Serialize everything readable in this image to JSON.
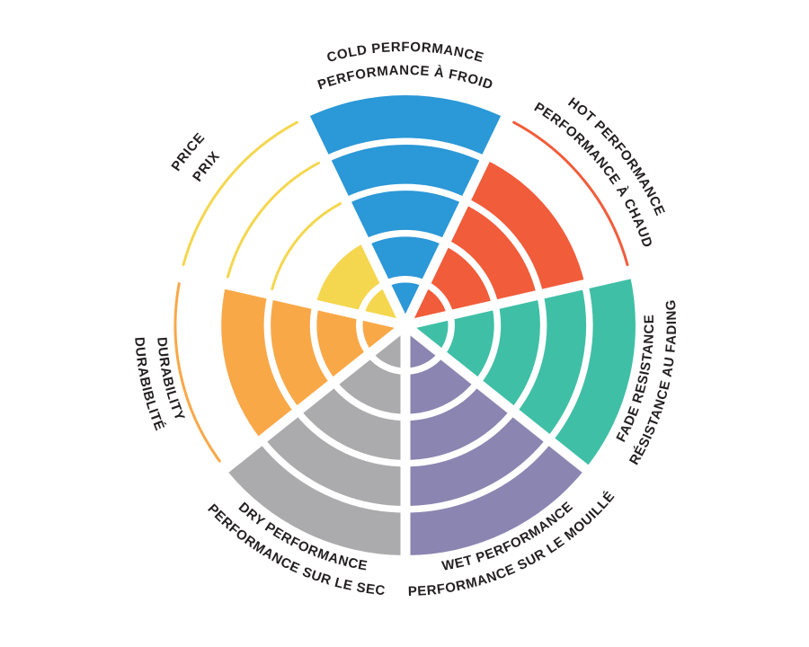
{
  "chart_data": {
    "type": "polar-sector-rating",
    "description": "Seven-sector circular rating wheel, each sector filled to a rating out of 5 rings; unfilled ring boundaries shown as thin colored arcs",
    "max_rating": 5,
    "rings": 5,
    "legend_position": "around-circle",
    "grid": "white ring separators inside filled sectors",
    "text_color": "#231f20",
    "background_color": "#ffffff",
    "sectors": [
      {
        "name": "cold-performance",
        "lines": [
          "COLD PERFORMANCE",
          "PERFORMANCE À FROID"
        ],
        "value": 5,
        "color": "#2b98d7"
      },
      {
        "name": "hot-performance",
        "lines": [
          "HOT PERFORMANCE",
          "PERFORMANCE À CHAUD"
        ],
        "value": 4,
        "color": "#f15c3b"
      },
      {
        "name": "fade-resistance",
        "lines": [
          "RÉSISTANCE AU FADING",
          "FADE RESISTANCE"
        ],
        "value": 5,
        "color": "#3fbfa6"
      },
      {
        "name": "wet-performance",
        "lines": [
          "PERFORMANCE SUR LE MOUILLÉ",
          "WET PERFORMANCE"
        ],
        "value": 5,
        "color": "#8b85b1"
      },
      {
        "name": "dry-performance",
        "lines": [
          "PERFORMANCE SUR LE SEC",
          "DRY PERFORMANCE"
        ],
        "value": 5,
        "color": "#ababad"
      },
      {
        "name": "durability",
        "lines": [
          "DURABIBLITÉ",
          "DURABILITY"
        ],
        "value": 4,
        "color": "#f9a848"
      },
      {
        "name": "price",
        "lines": [
          "PRICE",
          "PRIX"
        ],
        "value": 2,
        "color": "#f4d74f"
      }
    ]
  }
}
